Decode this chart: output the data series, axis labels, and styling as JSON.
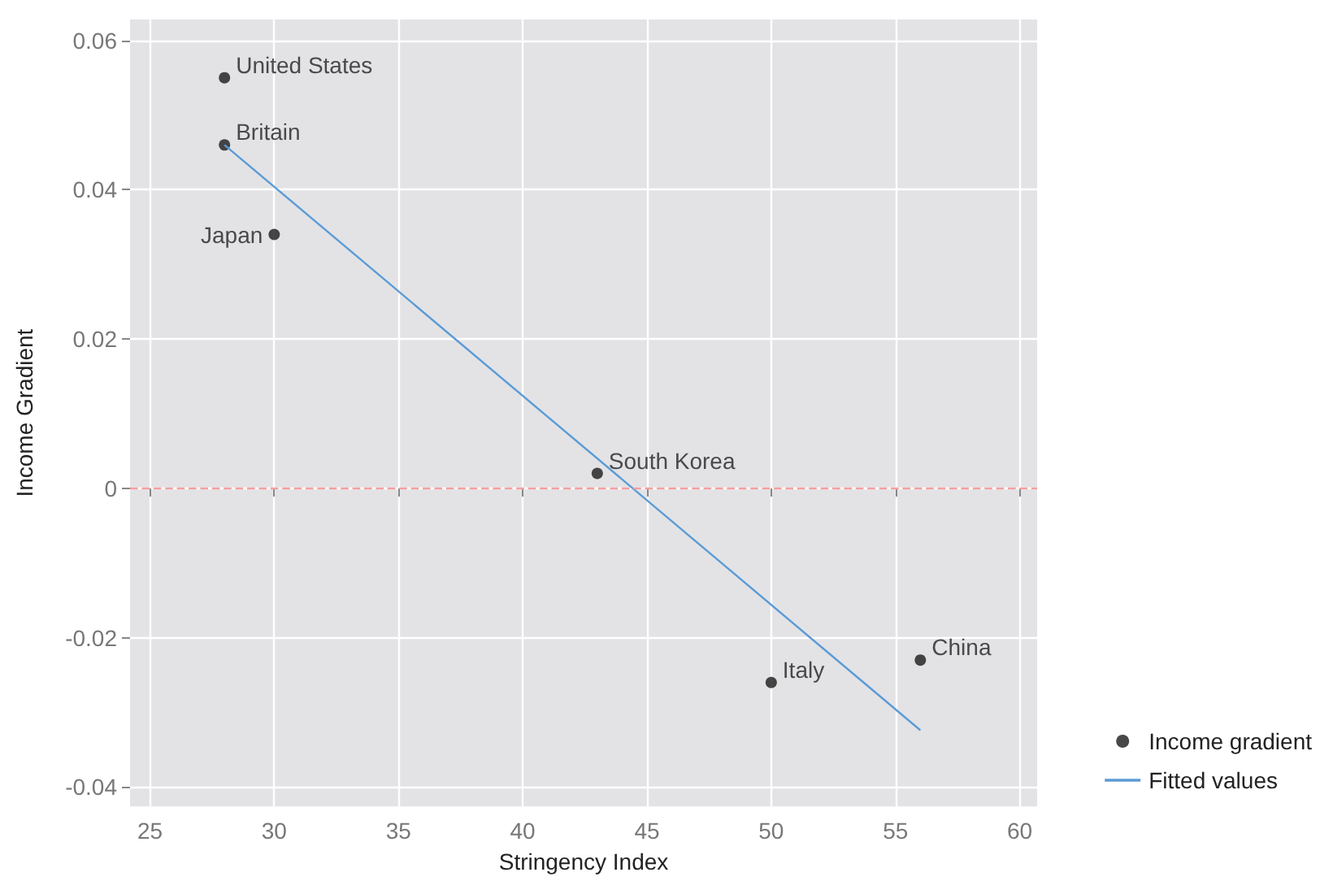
{
  "chart_data": {
    "type": "scatter",
    "xlabel": "Stringency Index",
    "ylabel": "Income Gradient",
    "series": [
      {
        "name": "Income gradient",
        "color": "#1a1a1a",
        "x": [
          28,
          28,
          30,
          43,
          50,
          56
        ],
        "values": [
          0.055,
          0.046,
          0.034,
          0.002,
          -0.026,
          -0.023
        ]
      },
      {
        "name": "Fitted values",
        "type": "line",
        "marker": "none",
        "color": "#5b9bd5",
        "x": [
          28,
          56
        ],
        "values": [
          0.046,
          -0.0324
        ]
      }
    ],
    "annotations": [
      {
        "text": "United States",
        "x": 28,
        "y": 0.055
      },
      {
        "text": "Britain",
        "x": 28,
        "y": 0.046
      },
      {
        "text": "Japan",
        "x": 30,
        "y": 0.034
      },
      {
        "text": "South Korea",
        "x": 43,
        "y": 0.002
      },
      {
        "text": "Italy",
        "x": 50,
        "y": -0.026
      },
      {
        "text": "China",
        "x": 56,
        "y": -0.023
      }
    ],
    "ref_lines": [
      {
        "axis": "y",
        "value": 0,
        "color": "#f4a0a0",
        "line_style": "dashed"
      }
    ],
    "xlim": [
      24.2,
      60.7
    ],
    "xticks": [
      25,
      30,
      35,
      40,
      45,
      50,
      55,
      60
    ],
    "ylim": [
      -0.0426,
      0.0628
    ],
    "yticks": [
      -0.04,
      -0.02,
      0,
      0.02,
      0.04,
      0.06
    ],
    "grid": true,
    "legend": "bottom right"
  }
}
